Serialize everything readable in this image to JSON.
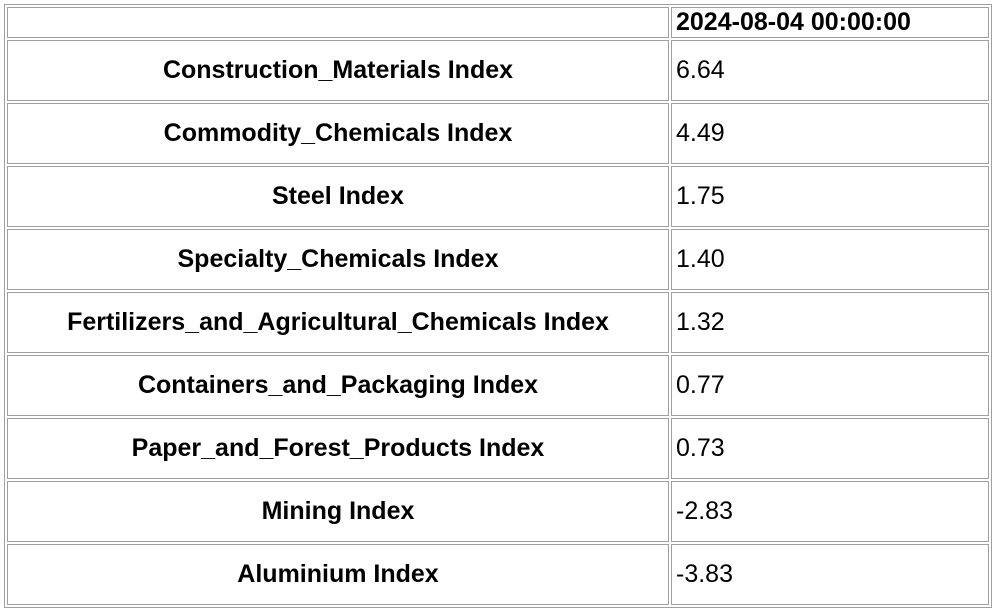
{
  "table": {
    "header": {
      "column": "2024-08-04 00:00:00"
    },
    "rows": [
      [
        "Construction_Materials Index",
        "6.64"
      ],
      [
        "Commodity_Chemicals Index",
        "4.49"
      ],
      [
        "Steel Index",
        "1.75"
      ],
      [
        "Specialty_Chemicals Index",
        "1.40"
      ],
      [
        "Fertilizers_and_Agricultural_Chemicals Index",
        "1.32"
      ],
      [
        "Containers_and_Packaging Index",
        "0.77"
      ],
      [
        "Paper_and_Forest_Products Index",
        "0.73"
      ],
      [
        "Mining Index",
        "-2.83"
      ],
      [
        "Aluminium Index",
        "-3.83"
      ]
    ]
  }
}
